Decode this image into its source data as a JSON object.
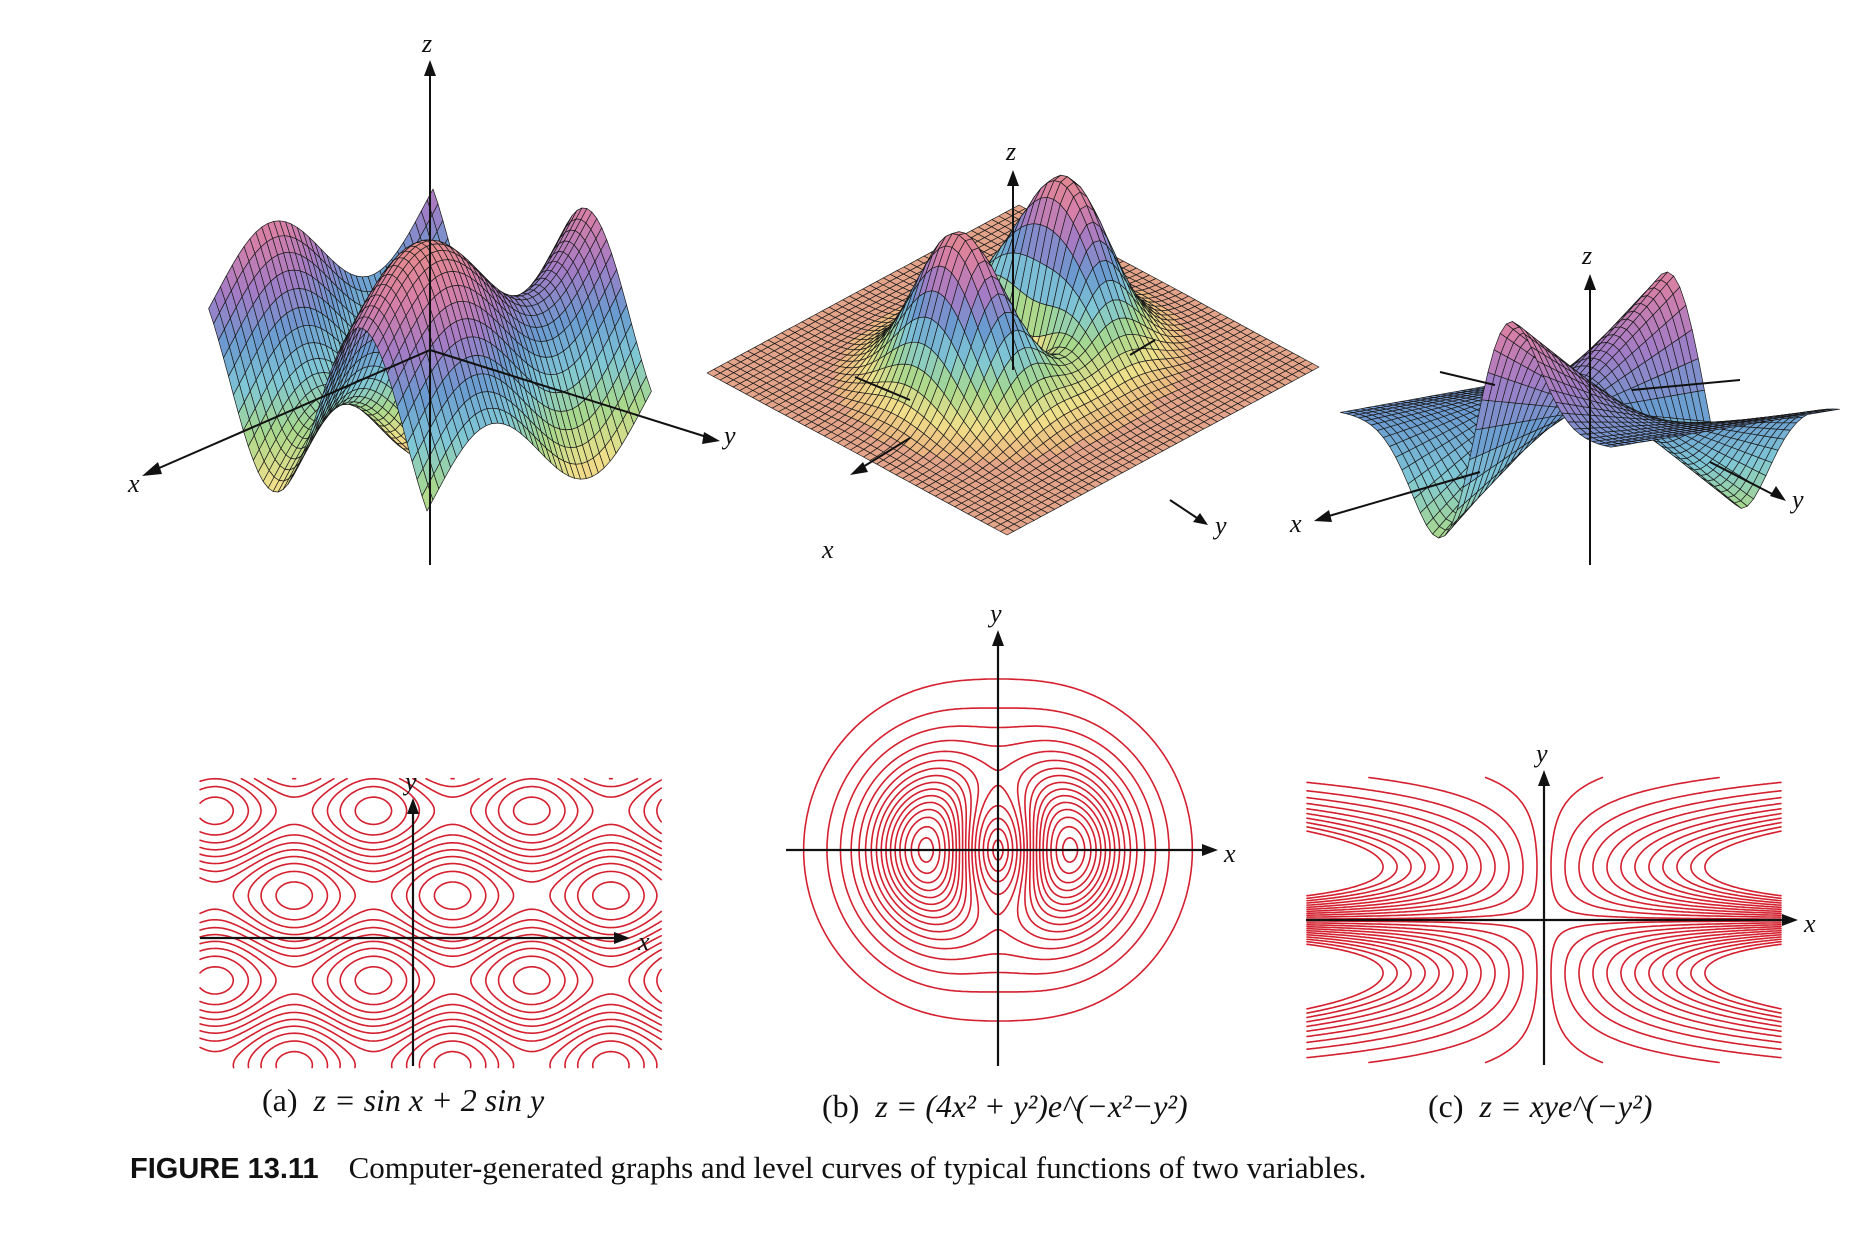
{
  "figure": {
    "label": "FIGURE 13.11",
    "caption": "Computer-generated graphs and level curves of typical functions of two variables."
  },
  "panels": [
    {
      "id": "a",
      "tag": "(a)",
      "formula": "z = sin x + 2 sin y",
      "surface_axes": {
        "x": "x",
        "y": "y",
        "z": "z"
      },
      "contour_axes": {
        "x": "x",
        "y": "y"
      }
    },
    {
      "id": "b",
      "tag": "(b)",
      "formula": "z = (4x² + y²)e^(−x²−y²)",
      "surface_axes": {
        "x": "x",
        "y": "y",
        "z": "z"
      },
      "contour_axes": {
        "x": "x",
        "y": "y"
      }
    },
    {
      "id": "c",
      "tag": "(c)",
      "formula": "z = xye^(−y²)",
      "surface_axes": {
        "x": "x",
        "y": "y",
        "z": "z"
      },
      "contour_axes": {
        "x": "x",
        "y": "y"
      }
    }
  ],
  "colors": {
    "contour": "#d4202f",
    "axis": "#111111",
    "mesh": "#1a1a1a",
    "surface_palette": [
      "#e9a07d",
      "#f0e08a",
      "#a8d88c",
      "#7fc7d6",
      "#6a9ad0",
      "#a27cc6",
      "#d67fa8",
      "#e58b8b"
    ],
    "flat_base": "#e3a48a"
  }
}
